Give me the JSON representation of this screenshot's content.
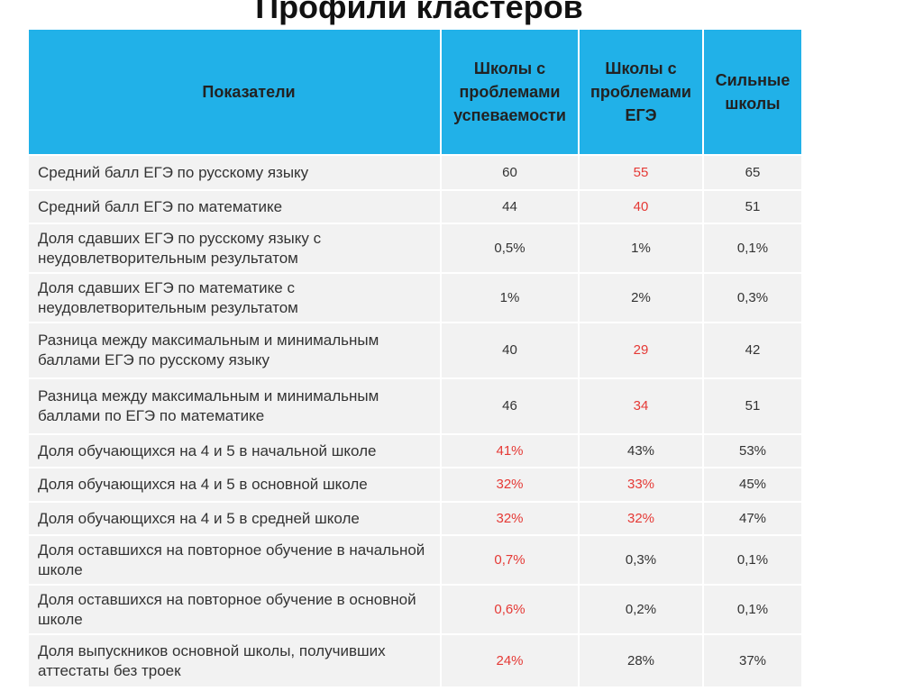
{
  "title": "Профили кластеров",
  "headers": [
    "Показатели",
    "Школы с проблемами успеваемости",
    "Школы с проблемами ЕГЭ",
    "Сильные школы"
  ],
  "rows": [
    {
      "label": "Средний балл ЕГЭ по русскому языку",
      "values": [
        "60",
        "55",
        "65"
      ],
      "red": [
        false,
        true,
        false
      ]
    },
    {
      "label": "Средний балл ЕГЭ по математике",
      "values": [
        "44",
        "40",
        "51"
      ],
      "red": [
        false,
        true,
        false
      ]
    },
    {
      "label": "Доля сдавших ЕГЭ по русскому языку с неудовлетворительным результатом",
      "values": [
        "0,5%",
        "1%",
        "0,1%"
      ],
      "red": [
        false,
        false,
        false
      ]
    },
    {
      "label": "Доля сдавших ЕГЭ по математике с неудовлетворительным результатом",
      "values": [
        "1%",
        "2%",
        "0,3%"
      ],
      "red": [
        false,
        false,
        false
      ]
    },
    {
      "label": "Разница между максимальным и минимальным баллами  ЕГЭ по русскому языку",
      "values": [
        "40",
        "29",
        "42"
      ],
      "red": [
        false,
        true,
        false
      ]
    },
    {
      "label": "Разница между максимальным и минимальным баллами по ЕГЭ по математике",
      "values": [
        "46",
        "34",
        "51"
      ],
      "red": [
        false,
        true,
        false
      ]
    },
    {
      "label": "Доля обучающихся на 4 и 5 в начальной школе",
      "values": [
        "41%",
        "43%",
        "53%"
      ],
      "red": [
        true,
        false,
        false
      ]
    },
    {
      "label": "Доля обучающихся на 4 и 5 в основной школе",
      "values": [
        "32%",
        "33%",
        "45%"
      ],
      "red": [
        true,
        true,
        false
      ]
    },
    {
      "label": "Доля обучающихся на 4 и 5 в средней школе",
      "values": [
        "32%",
        "32%",
        "47%"
      ],
      "red": [
        true,
        true,
        false
      ]
    },
    {
      "label": "Доля оставшихся на повторное обучение в начальной школе",
      "values": [
        "0,7%",
        "0,3%",
        "0,1%"
      ],
      "red": [
        true,
        false,
        false
      ]
    },
    {
      "label": "Доля оставшихся на повторное обучение в основной школе",
      "values": [
        "0,6%",
        "0,2%",
        "0,1%"
      ],
      "red": [
        true,
        false,
        false
      ]
    },
    {
      "label": "Доля выпускников основной школы, получивших аттестаты без троек",
      "values": [
        "24%",
        "28%",
        "37%"
      ],
      "red": [
        true,
        false,
        false
      ]
    }
  ],
  "colors": {
    "header_bg": "#21b1e8",
    "row_bg": "#f2f2f2",
    "highlight": "#e53935"
  }
}
